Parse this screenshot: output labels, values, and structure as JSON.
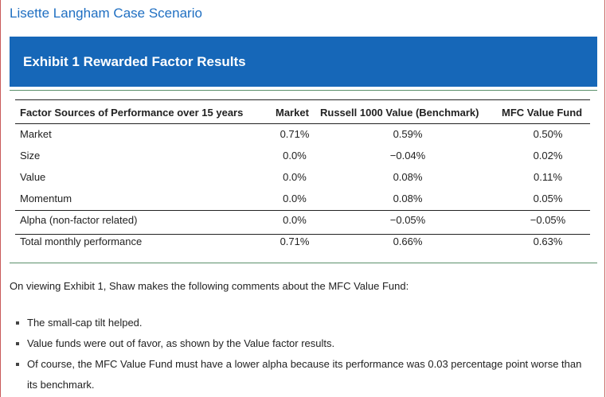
{
  "case_title": "Lisette Langham Case Scenario",
  "exhibit_title": "Exhibit 1 Rewarded Factor Results",
  "table": {
    "headers": [
      "Factor Sources of Performance over 15 years",
      "Market",
      "Russell 1000 Value (Benchmark)",
      "MFC Value Fund"
    ],
    "rows": [
      [
        "Market",
        "0.71%",
        "0.59%",
        "0.50%"
      ],
      [
        "Size",
        "0.0%",
        "−0.04%",
        "0.02%"
      ],
      [
        "Value",
        "0.0%",
        "0.08%",
        "0.11%"
      ],
      [
        "Momentum",
        "0.0%",
        "0.08%",
        "0.05%"
      ],
      [
        "Alpha (non-factor related)",
        "0.0%",
        "−0.05%",
        "−0.05%"
      ],
      [
        "Total monthly performance",
        "0.71%",
        "0.66%",
        "0.63%"
      ]
    ]
  },
  "intro": "On viewing Exhibit 1, Shaw makes the following comments about the MFC Value Fund:",
  "bullets": [
    "The small-cap tilt helped.",
    "Value funds were out of favor, as shown by the Value factor results.",
    "Of course, the MFC Value Fund must have a lower alpha because its performance was 0.03 percentage point worse than its benchmark."
  ]
}
